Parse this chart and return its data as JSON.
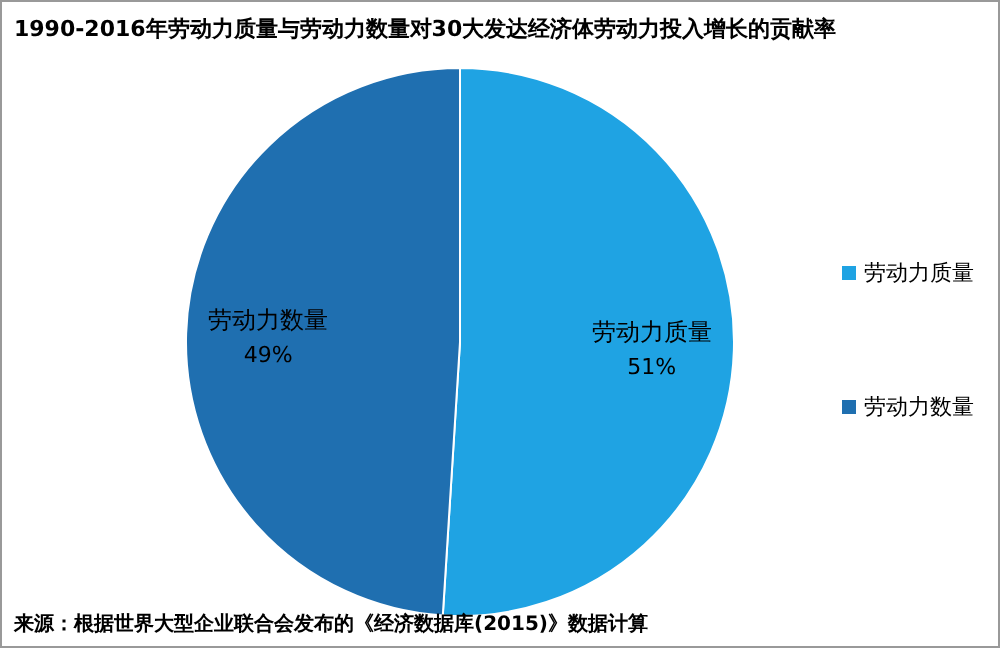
{
  "chart_data": {
    "type": "pie",
    "title": "1990-2016年劳动力质量与劳动力数量对30大发达经济体劳动力投入增长的贡献率",
    "categories": [
      "劳动力质量",
      "劳动力数量"
    ],
    "values": [
      51,
      49
    ],
    "colors": [
      "#1fa3e3",
      "#1f6fb0"
    ],
    "value_labels": [
      "51%",
      "49%"
    ],
    "legend": "right",
    "annotations": [
      "来源：根据世界大型企业联合会发布的《经济数据库(2015)》数据计算"
    ]
  }
}
